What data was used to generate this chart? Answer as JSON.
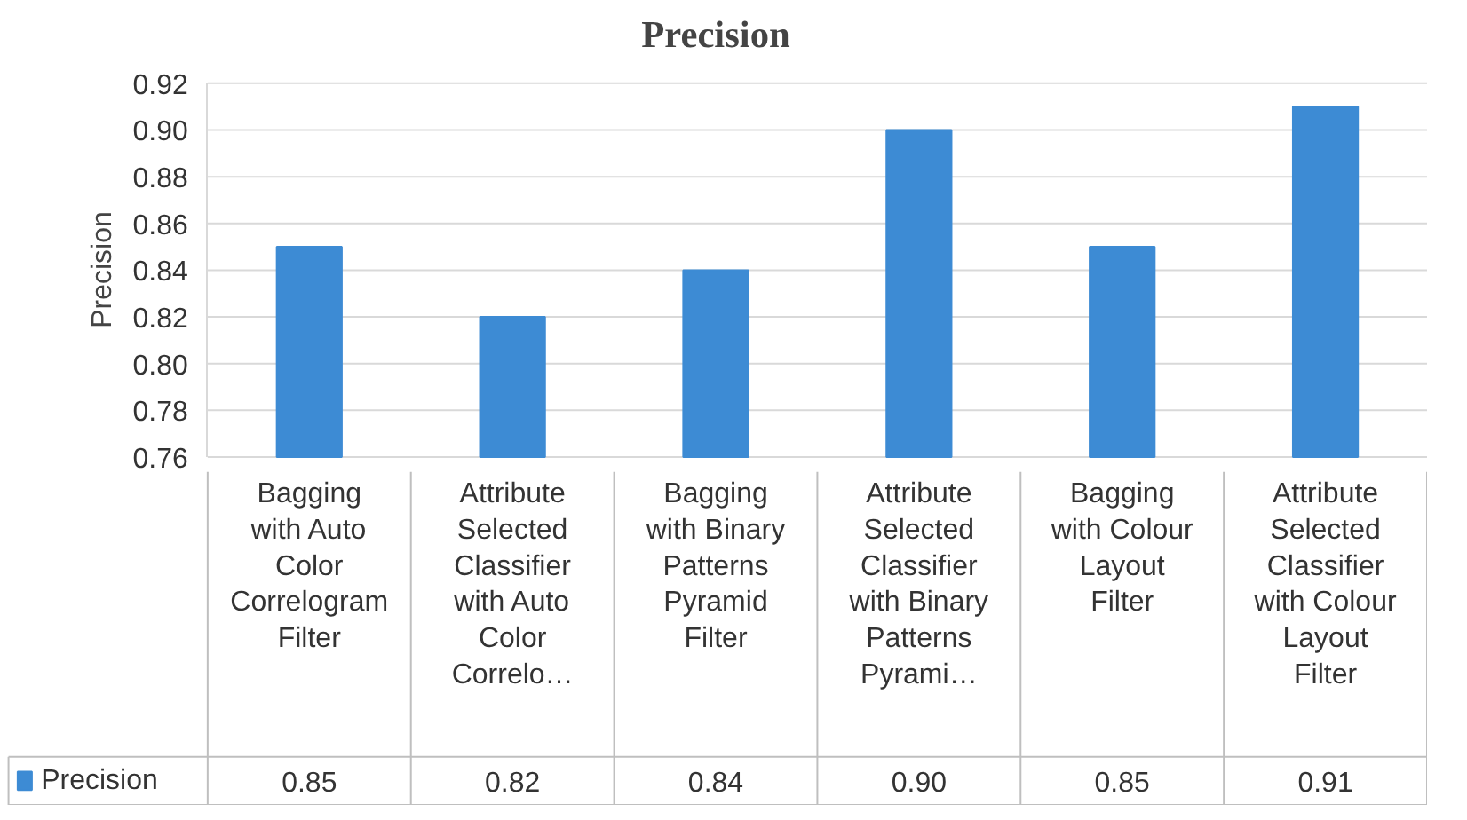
{
  "chart_data": {
    "type": "bar",
    "title": "Precision",
    "ylabel": "Precision",
    "categories": [
      "Bagging with Auto Color Correlogram Filter",
      "Attribute Selected Classifier with Auto Color Correlo…",
      "Bagging with Binary Patterns Pyramid Filter",
      "Attribute Selected Classifier with Binary Patterns Pyrami…",
      "Bagging with Colour Layout Filter",
      "Attribute Selected Classifier with Colour Layout Filter"
    ],
    "series": [
      {
        "name": "Precision",
        "color": "#3d8bd4",
        "values": [
          0.85,
          0.82,
          0.84,
          0.9,
          0.85,
          0.91
        ],
        "value_labels": [
          "0.85",
          "0.82",
          "0.84",
          "0.90",
          "0.85",
          "0.91"
        ]
      }
    ],
    "ylim": [
      0.76,
      0.92
    ],
    "yticks": [
      "0.76",
      "0.78",
      "0.80",
      "0.82",
      "0.84",
      "0.86",
      "0.88",
      "0.90",
      "0.92"
    ],
    "grid": "y",
    "legend": "bottom"
  }
}
